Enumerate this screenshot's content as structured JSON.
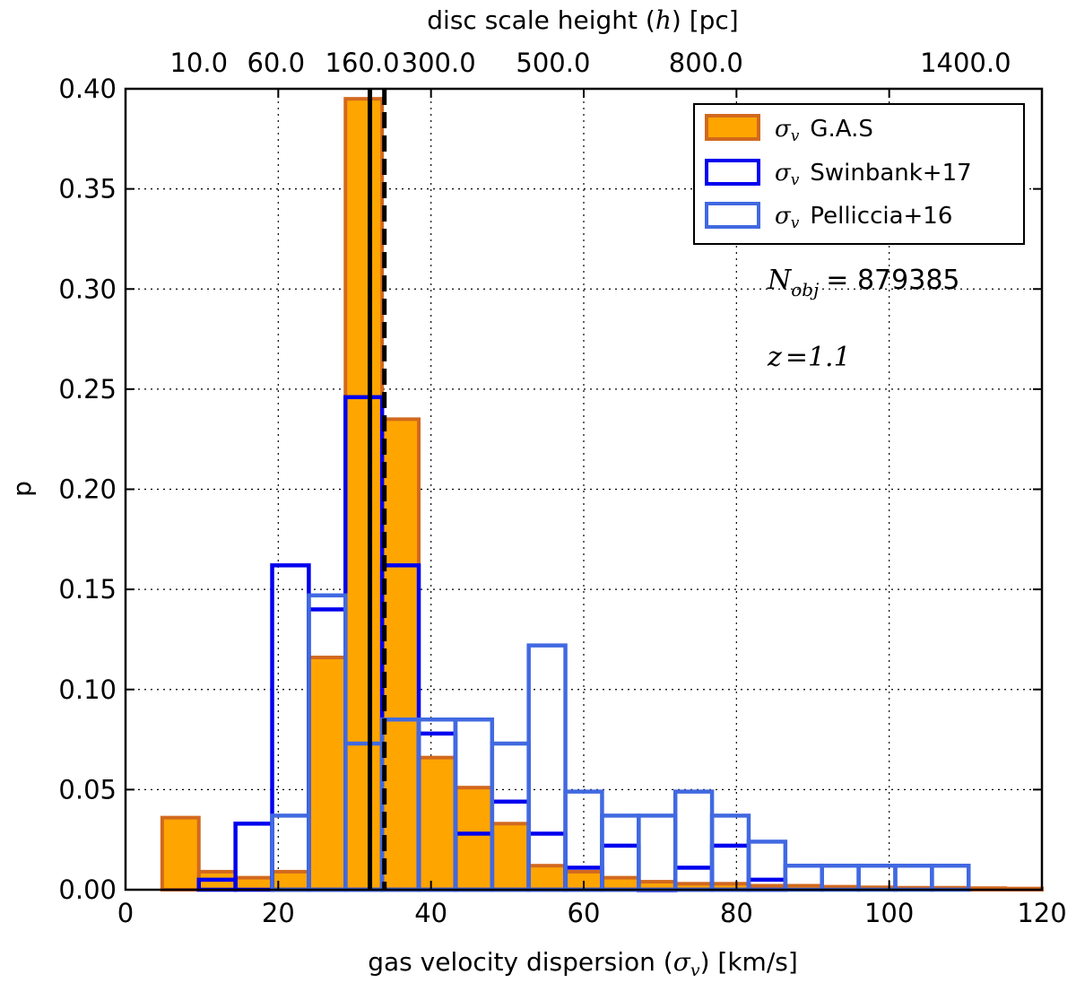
{
  "chart_data": {
    "type": "bar",
    "subtype": "histogram",
    "xlabel_parts": [
      "gas velocity dispersion (",
      "σ",
      "v",
      ") [km/s]"
    ],
    "ylabel": "p",
    "top_xlabel_parts": [
      "disc scale height (",
      "h",
      ") [pc]"
    ],
    "xlim": [
      0,
      120
    ],
    "ylim": [
      0,
      0.4
    ],
    "x_ticks": [
      0,
      20,
      40,
      60,
      80,
      100,
      120
    ],
    "y_ticks": [
      0.0,
      0.05,
      0.1,
      0.15,
      0.2,
      0.25,
      0.3,
      0.35,
      0.4
    ],
    "x_tick_labels": [
      "0",
      "20",
      "40",
      "60",
      "80",
      "100",
      "120"
    ],
    "y_tick_labels": [
      "0.00",
      "0.05",
      "0.10",
      "0.15",
      "0.20",
      "0.25",
      "0.30",
      "0.35",
      "0.40"
    ],
    "top_ticks": [
      {
        "x": 9.6,
        "label": "10.0"
      },
      {
        "x": 19.7,
        "label": "60.0"
      },
      {
        "x": 31.0,
        "label": "160.0"
      },
      {
        "x": 41.0,
        "label": "300.0"
      },
      {
        "x": 56.0,
        "label": "500.0"
      },
      {
        "x": 76.0,
        "label": "800.0"
      },
      {
        "x": 110.0,
        "label": "1400.0"
      }
    ],
    "grid": true,
    "legend_position": "top-right",
    "series": [
      {
        "name": "G.A.S",
        "style": "filled",
        "fill": "#ffa500",
        "edge": "#d2691e",
        "bins": [
          {
            "x0": 4.8,
            "x1": 9.6,
            "y": 0.036
          },
          {
            "x0": 9.6,
            "x1": 14.4,
            "y": 0.009
          },
          {
            "x0": 14.4,
            "x1": 19.2,
            "y": 0.006
          },
          {
            "x0": 19.2,
            "x1": 24.0,
            "y": 0.009
          },
          {
            "x0": 24.0,
            "x1": 28.8,
            "y": 0.116
          },
          {
            "x0": 28.8,
            "x1": 33.6,
            "y": 0.395
          },
          {
            "x0": 33.6,
            "x1": 38.4,
            "y": 0.235
          },
          {
            "x0": 38.4,
            "x1": 43.2,
            "y": 0.066
          },
          {
            "x0": 43.2,
            "x1": 48.0,
            "y": 0.051
          },
          {
            "x0": 48.0,
            "x1": 52.8,
            "y": 0.033
          },
          {
            "x0": 52.8,
            "x1": 57.6,
            "y": 0.012
          },
          {
            "x0": 57.6,
            "x1": 62.4,
            "y": 0.009
          },
          {
            "x0": 62.4,
            "x1": 67.2,
            "y": 0.006
          },
          {
            "x0": 67.2,
            "x1": 72.0,
            "y": 0.004
          },
          {
            "x0": 72.0,
            "x1": 76.8,
            "y": 0.003
          },
          {
            "x0": 76.8,
            "x1": 81.6,
            "y": 0.003
          },
          {
            "x0": 81.6,
            "x1": 86.4,
            "y": 0.002
          },
          {
            "x0": 86.4,
            "x1": 91.2,
            "y": 0.002
          },
          {
            "x0": 91.2,
            "x1": 96.0,
            "y": 0.0015
          },
          {
            "x0": 96.0,
            "x1": 100.8,
            "y": 0.0012
          },
          {
            "x0": 100.8,
            "x1": 105.6,
            "y": 0.001
          },
          {
            "x0": 105.6,
            "x1": 110.4,
            "y": 0.001
          },
          {
            "x0": 110.4,
            "x1": 115.2,
            "y": 0.0008
          },
          {
            "x0": 115.2,
            "x1": 120.0,
            "y": 0.0006
          }
        ]
      },
      {
        "name": "Swinbank+17",
        "style": "step",
        "edge": "#0000ee",
        "bins": [
          {
            "x0": 9.6,
            "x1": 14.4,
            "y": 0.005
          },
          {
            "x0": 14.4,
            "x1": 19.2,
            "y": 0.033
          },
          {
            "x0": 19.2,
            "x1": 24.0,
            "y": 0.162
          },
          {
            "x0": 24.0,
            "x1": 28.8,
            "y": 0.14
          },
          {
            "x0": 28.8,
            "x1": 33.6,
            "y": 0.246
          },
          {
            "x0": 33.6,
            "x1": 38.4,
            "y": 0.162
          },
          {
            "x0": 38.4,
            "x1": 43.2,
            "y": 0.078
          },
          {
            "x0": 43.2,
            "x1": 48.0,
            "y": 0.028
          },
          {
            "x0": 48.0,
            "x1": 52.8,
            "y": 0.044
          },
          {
            "x0": 52.8,
            "x1": 57.6,
            "y": 0.028
          },
          {
            "x0": 57.6,
            "x1": 62.4,
            "y": 0.011
          },
          {
            "x0": 62.4,
            "x1": 67.2,
            "y": 0.022
          },
          {
            "x0": 67.2,
            "x1": 72.0,
            "y": 0.0
          },
          {
            "x0": 72.0,
            "x1": 76.8,
            "y": 0.011
          },
          {
            "x0": 76.8,
            "x1": 81.6,
            "y": 0.022
          },
          {
            "x0": 81.6,
            "x1": 86.4,
            "y": 0.005
          }
        ]
      },
      {
        "name": "Pelliccia+16",
        "style": "step",
        "edge": "#4169e1",
        "bins": [
          {
            "x0": 19.2,
            "x1": 24.0,
            "y": 0.037
          },
          {
            "x0": 24.0,
            "x1": 28.8,
            "y": 0.147
          },
          {
            "x0": 28.8,
            "x1": 33.6,
            "y": 0.073
          },
          {
            "x0": 33.6,
            "x1": 38.4,
            "y": 0.085
          },
          {
            "x0": 38.4,
            "x1": 43.2,
            "y": 0.085
          },
          {
            "x0": 43.2,
            "x1": 48.0,
            "y": 0.085
          },
          {
            "x0": 48.0,
            "x1": 52.8,
            "y": 0.073
          },
          {
            "x0": 52.8,
            "x1": 57.6,
            "y": 0.122
          },
          {
            "x0": 57.6,
            "x1": 62.4,
            "y": 0.049
          },
          {
            "x0": 62.4,
            "x1": 67.2,
            "y": 0.037
          },
          {
            "x0": 67.2,
            "x1": 72.0,
            "y": 0.037
          },
          {
            "x0": 72.0,
            "x1": 76.8,
            "y": 0.049
          },
          {
            "x0": 76.8,
            "x1": 81.6,
            "y": 0.037
          },
          {
            "x0": 81.6,
            "x1": 86.4,
            "y": 0.024
          },
          {
            "x0": 86.4,
            "x1": 91.2,
            "y": 0.012
          },
          {
            "x0": 91.2,
            "x1": 96.0,
            "y": 0.012
          },
          {
            "x0": 96.0,
            "x1": 100.8,
            "y": 0.012
          },
          {
            "x0": 100.8,
            "x1": 105.6,
            "y": 0.012
          },
          {
            "x0": 105.6,
            "x1": 110.4,
            "y": 0.012
          }
        ]
      }
    ],
    "vlines": [
      {
        "x": 32.0,
        "style": "solid",
        "color": "#000000"
      },
      {
        "x": 33.9,
        "style": "dashed",
        "color": "#000000"
      }
    ],
    "annotations": {
      "nobj_symbol": "N",
      "nobj_sub": "obj",
      "nobj_value": "= 879385",
      "z_symbol": "z",
      "z_value": "=1.1"
    },
    "legend_entries": [
      {
        "symbol": "σ",
        "sub": "v",
        "text": "G.A.S"
      },
      {
        "symbol": "σ",
        "sub": "v",
        "text": "Swinbank+17"
      },
      {
        "symbol": "σ",
        "sub": "v",
        "text": "Pelliccia+16"
      }
    ]
  }
}
